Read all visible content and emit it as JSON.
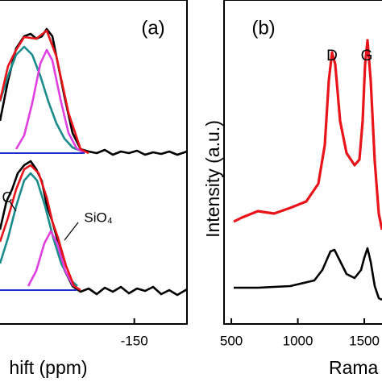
{
  "chart_data": [
    {
      "type": "line",
      "xlabel": "hift (ppm)",
      "annotations": [
        "(a)",
        "C",
        "SiO₄"
      ],
      "xlim": [
        -100,
        -169.6
      ],
      "ylim": [
        0,
        402
      ],
      "xticks": [
        -150
      ],
      "series": [
        {
          "color": "#000000",
          "x": [
            -100,
            -103,
            -106,
            -109,
            -111.4,
            -113.5,
            -115.6,
            -117.4,
            -119.5,
            -121.6,
            -124,
            -127,
            -130,
            -133,
            -136,
            -139,
            -142,
            -145,
            -148,
            -151,
            -154,
            -157,
            -160,
            -163,
            -166,
            -169.6
          ],
          "values": [
            252,
            302,
            342,
            357,
            360,
            354,
            357,
            366,
            357,
            322,
            282,
            237,
            217,
            214,
            212,
            216,
            210,
            214,
            212,
            215,
            210,
            213,
            211,
            214,
            210,
            214
          ]
        },
        {
          "color": "#1a8c8c",
          "x": [
            -100,
            -103,
            -106,
            -109,
            -112,
            -115,
            -118,
            -121,
            -124,
            -127,
            -130
          ],
          "values": [
            276,
            308,
            334,
            344,
            334,
            308,
            276,
            249,
            230,
            219,
            215
          ]
        },
        {
          "color": "#e040e0",
          "x": [
            -106,
            -109,
            -112,
            -115,
            -117.4,
            -119.5,
            -122.5,
            -125.5,
            -128.5,
            -131.5
          ],
          "values": [
            217,
            234,
            274,
            323,
            340,
            327,
            279,
            237,
            218,
            212
          ]
        },
        {
          "color": "#e8141a",
          "x": [
            -100,
            -103,
            -106,
            -109,
            -113.5,
            -117.4,
            -121,
            -125.5,
            -130,
            -133
          ],
          "values": [
            277,
            320,
            340,
            356,
            354,
            364,
            332,
            262,
            217,
            212
          ]
        },
        {
          "color": "#1f2fcf",
          "x": [
            -100,
            -131.5
          ],
          "values": [
            212,
            212
          ]
        },
        {
          "color": "#000000",
          "x": [
            -100,
            -102.4,
            -104.5,
            -106.6,
            -109,
            -111.4,
            -113.5,
            -115.6,
            -117.4,
            -119.5,
            -121.6,
            -124,
            -127,
            -130,
            -133,
            -136,
            -139,
            -142,
            -145,
            -148,
            -151,
            -154,
            -157,
            -160,
            -163,
            -166,
            -169.6
          ],
          "values": [
            117,
            152,
            167,
            187,
            197,
            202,
            192,
            177,
            147,
            127,
            102,
            67,
            47,
            40,
            44,
            37,
            45,
            40,
            46,
            38,
            44,
            41,
            46,
            37,
            42,
            36,
            43
          ]
        },
        {
          "color": "#1a8c8c",
          "x": [
            -100,
            -103,
            -106,
            -109,
            -111.4,
            -113.8,
            -116.8,
            -119.8,
            -122.8,
            -125.8,
            -128.8
          ],
          "values": [
            75,
            107,
            146,
            178,
            187,
            178,
            146,
            107,
            75,
            56,
            47
          ]
        },
        {
          "color": "#e040e0",
          "x": [
            -110.5,
            -113.5,
            -116.5,
            -118.9,
            -121.3,
            -124.3,
            -127.3
          ],
          "values": [
            47,
            66,
            100,
            115,
            100,
            66,
            47
          ]
        },
        {
          "color": "#e8141a",
          "x": [
            -100,
            -103,
            -106,
            -109,
            -111.4,
            -114.4,
            -117.4,
            -119.5,
            -121.6,
            -124.6,
            -127.6,
            -130
          ],
          "values": [
            102,
            132,
            167,
            192,
            197,
            187,
            157,
            127,
            107,
            72,
            47,
            42
          ]
        },
        {
          "color": "#1f2fcf",
          "x": [
            -100,
            -128.5
          ],
          "values": [
            42,
            42
          ]
        }
      ]
    },
    {
      "type": "line",
      "xlabel": "Rama",
      "ylabel": "Intensity (a.u.)",
      "annotations": [
        "(b)",
        "D",
        "G"
      ],
      "xlim": [
        445,
        1633
      ],
      "ylim": [
        0,
        402
      ],
      "xticks": [
        500,
        1000,
        1500
      ],
      "series": [
        {
          "color": "#e8141a",
          "x": [
            517.7,
            578.3,
            699.5,
            820.8,
            942,
            1063.2,
            1154.1,
            1202.6,
            1232.9,
            1257.1,
            1281.4,
            1317.7,
            1366.2,
            1426.8,
            1463.2,
            1487.4,
            1505.6,
            1523.8,
            1548,
            1578.3,
            1608.6,
            1632.9
          ],
          "values": [
            127,
            132,
            140,
            137,
            144,
            152,
            174,
            222,
            302,
            337,
            322,
            252,
            212,
            197,
            204,
            252,
            322,
            352,
            302,
            202,
            137,
            117
          ]
        },
        {
          "color": "#000000",
          "x": [
            517.7,
            699.5,
            942,
            1123.8,
            1184.4,
            1245,
            1275.3,
            1305.6,
            1366.2,
            1426.8,
            1475.3,
            1499.5,
            1523.8,
            1548,
            1578.3,
            1608.6,
            1632.9
          ],
          "values": [
            45,
            45,
            47,
            54,
            67,
            90,
            92,
            82,
            62,
            57,
            67,
            82,
            94,
            77,
            47,
            32,
            30
          ]
        }
      ]
    }
  ]
}
